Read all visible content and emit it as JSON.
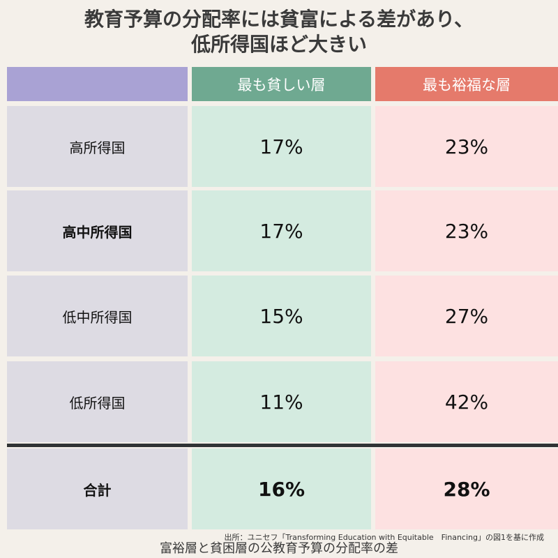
{
  "title": {
    "line1": "教育予算の分配率には貧富による差があり、",
    "line2": "低所得国ほど大きい"
  },
  "headers": {
    "label": "",
    "poor": "最も貧しい層",
    "rich": "最も裕福な層"
  },
  "colors": {
    "header_label": "#a9a2d4",
    "header_poor": "#6fa991",
    "header_rich": "#e57a6b",
    "cell_label": "#dddbe3",
    "cell_poor": "#d4ebe0",
    "cell_rich": "#fde1e1",
    "divider": "#303335"
  },
  "chart_data": {
    "type": "table",
    "columns": [
      "",
      "最も貧しい層",
      "最も裕福な層"
    ],
    "rows": [
      {
        "label": "高所得国",
        "poor": "17%",
        "rich": "23%"
      },
      {
        "label": "高中所得国",
        "poor": "17%",
        "rich": "23%"
      },
      {
        "label": "低中所得国",
        "poor": "15%",
        "rich": "27%"
      },
      {
        "label": "低所得国",
        "poor": "11%",
        "rich": "42%"
      }
    ],
    "total": {
      "label": "合計",
      "poor": "16%",
      "rich": "28%"
    }
  },
  "source": "出所：ユニセフ「Transforming Education with Equitable　Financing」の図1を基に作成",
  "caption": "富裕層と貧困層の公教育予算の分配率の差"
}
